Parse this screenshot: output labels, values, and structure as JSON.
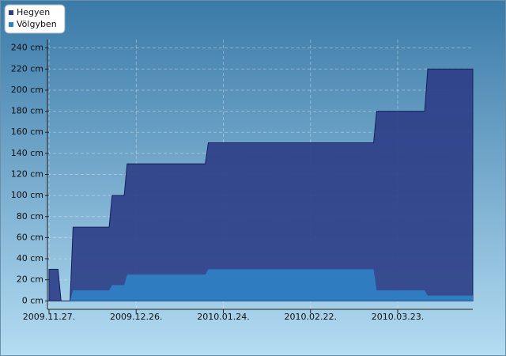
{
  "chart_data": {
    "type": "area",
    "x": [
      "2009-11-27",
      "2009-11-30",
      "2009-12-01",
      "2009-12-04",
      "2009-12-05",
      "2009-12-17",
      "2009-12-18",
      "2009-12-22",
      "2009-12-23",
      "2010-01-18",
      "2010-01-19",
      "2010-03-15",
      "2010-03-16",
      "2010-04-01",
      "2010-04-02",
      "2010-04-17"
    ],
    "series": [
      {
        "name": "Hegyen",
        "color": "#2c3d86",
        "values": [
          30,
          30,
          0,
          0,
          70,
          70,
          100,
          100,
          130,
          130,
          150,
          150,
          180,
          180,
          220,
          220
        ]
      },
      {
        "name": "Völgyben",
        "color": "#2f82c6",
        "values": [
          0,
          0,
          0,
          0,
          10,
          10,
          15,
          15,
          25,
          25,
          30,
          30,
          10,
          10,
          5,
          5
        ]
      }
    ],
    "xlim": [
      "2009-11-27",
      "2010-04-17"
    ],
    "xticks": [
      {
        "value": "2009-11-27",
        "label": "2009.11.27."
      },
      {
        "value": "2009-12-26",
        "label": "2009.12.26."
      },
      {
        "value": "2010-01-24",
        "label": "2010.01.24."
      },
      {
        "value": "2010-02-22",
        "label": "2010.02.22."
      },
      {
        "value": "2010-03-23",
        "label": "2010.03.23."
      }
    ],
    "ylim": [
      -8,
      248
    ],
    "yticks": [
      {
        "value": 0,
        "label": "0 cm"
      },
      {
        "value": 20,
        "label": "20 cm"
      },
      {
        "value": 40,
        "label": "40 cm"
      },
      {
        "value": 60,
        "label": "60 cm"
      },
      {
        "value": 80,
        "label": "80 cm"
      },
      {
        "value": 100,
        "label": "100 cm"
      },
      {
        "value": 120,
        "label": "120 cm"
      },
      {
        "value": 140,
        "label": "140 cm"
      },
      {
        "value": 160,
        "label": "160 cm"
      },
      {
        "value": 180,
        "label": "180 cm"
      },
      {
        "value": 200,
        "label": "200 cm"
      },
      {
        "value": 220,
        "label": "220 cm"
      },
      {
        "value": 240,
        "label": "240 cm"
      }
    ],
    "grid": true,
    "legend": "top-left"
  }
}
